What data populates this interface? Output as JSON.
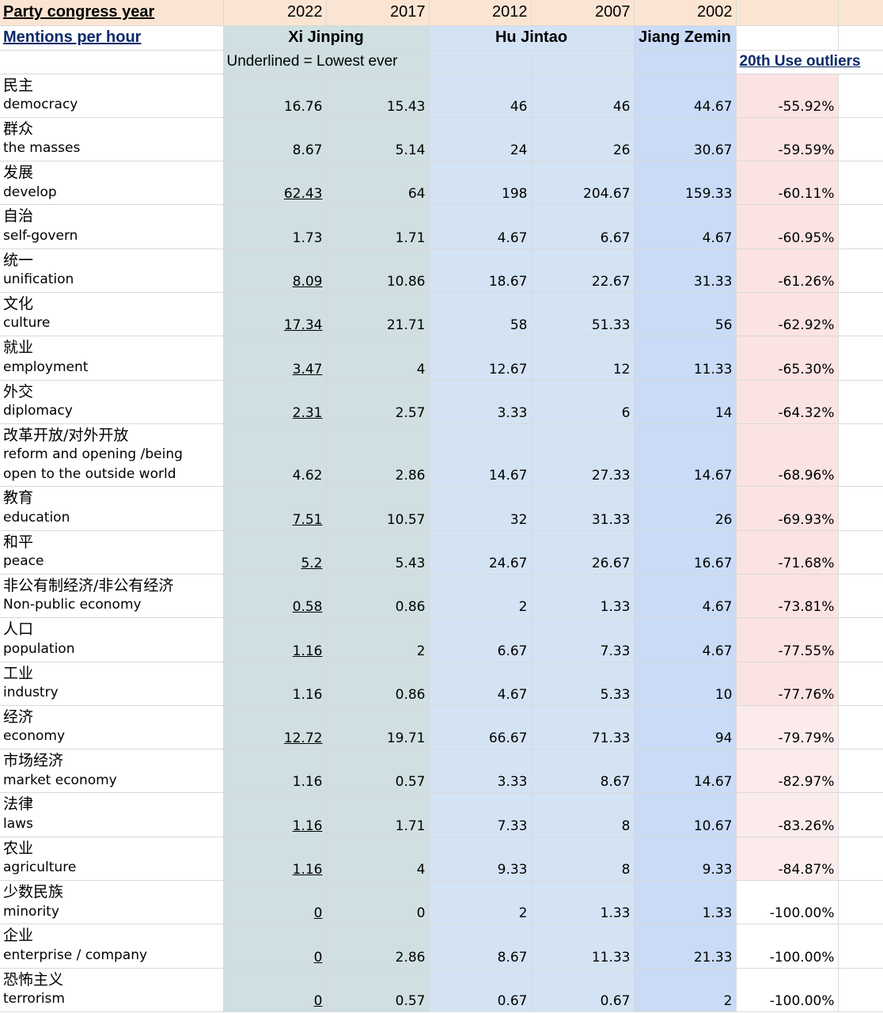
{
  "header": {
    "year_label": "Party congress year",
    "years": [
      "2022",
      "2017",
      "2012",
      "2007",
      "2002"
    ],
    "mentions_label": "Mentions per hour",
    "leaders": {
      "xi": "Xi Jinping",
      "hu": "Hu Jintao",
      "jiang": "Jiang Zemin"
    },
    "note": "Underlined = Lowest ever",
    "outliers_label": "20th Use outliers"
  },
  "colors": {
    "header_bg": "#fbe5d2",
    "xi_bg": "#cfdfe2",
    "hu_bg": "#d3e3f3",
    "jiang_bg": "#c9dbf6",
    "outlier_bg": "#fbe3e3"
  },
  "rows": [
    {
      "zh": "民主",
      "en": "democracy",
      "v": [
        "16.76",
        "15.43",
        "46",
        "46",
        "44.67"
      ],
      "pct": "-55.92%",
      "lowest": false
    },
    {
      "zh": "群众",
      "en": "the masses",
      "v": [
        "8.67",
        "5.14",
        "24",
        "26",
        "30.67"
      ],
      "pct": "-59.59%",
      "lowest": false
    },
    {
      "zh": "发展",
      "en": "develop",
      "v": [
        "62.43",
        "64",
        "198",
        "204.67",
        "159.33"
      ],
      "pct": "-60.11%",
      "lowest": true
    },
    {
      "zh": "自治",
      "en": "self-govern",
      "v": [
        "1.73",
        "1.71",
        "4.67",
        "6.67",
        "4.67"
      ],
      "pct": "-60.95%",
      "lowest": false
    },
    {
      "zh": "统一",
      "en": "unification",
      "v": [
        "8.09",
        "10.86",
        "18.67",
        "22.67",
        "31.33"
      ],
      "pct": "-61.26%",
      "lowest": true
    },
    {
      "zh": "文化",
      "en": "culture",
      "v": [
        "17.34",
        "21.71",
        "58",
        "51.33",
        "56"
      ],
      "pct": "-62.92%",
      "lowest": true
    },
    {
      "zh": "就业",
      "en": "employment",
      "v": [
        "3.47",
        "4",
        "12.67",
        "12",
        "11.33"
      ],
      "pct": "-65.30%",
      "lowest": true
    },
    {
      "zh": "外交",
      "en": "diplomacy",
      "v": [
        "2.31",
        "2.57",
        "3.33",
        "6",
        "14"
      ],
      "pct": "-64.32%",
      "lowest": true
    },
    {
      "zh": "改革开放/对外开放",
      "en": "reform and opening /being open to the outside world",
      "v": [
        "4.62",
        "2.86",
        "14.67",
        "27.33",
        "14.67"
      ],
      "pct": "-68.96%",
      "lowest": false
    },
    {
      "zh": "教育",
      "en": "education",
      "v": [
        "7.51",
        "10.57",
        "32",
        "31.33",
        "26"
      ],
      "pct": "-69.93%",
      "lowest": true
    },
    {
      "zh": "和平",
      "en": "peace",
      "v": [
        "5.2",
        "5.43",
        "24.67",
        "26.67",
        "16.67"
      ],
      "pct": "-71.68%",
      "lowest": true
    },
    {
      "zh": "非公有制经济/非公有经济",
      "en": "Non-public economy",
      "v": [
        "0.58",
        "0.86",
        "2",
        "1.33",
        "4.67"
      ],
      "pct": "-73.81%",
      "lowest": true
    },
    {
      "zh": "人口",
      "en": "population",
      "v": [
        "1.16",
        "2",
        "6.67",
        "7.33",
        "4.67"
      ],
      "pct": "-77.55%",
      "lowest": true
    },
    {
      "zh": "工业",
      "en": "industry",
      "v": [
        "1.16",
        "0.86",
        "4.67",
        "5.33",
        "10"
      ],
      "pct": "-77.76%",
      "lowest": false
    },
    {
      "zh": "经济",
      "en": "economy",
      "v": [
        "12.72",
        "19.71",
        "66.67",
        "71.33",
        "94"
      ],
      "pct": "-79.79%",
      "lowest": true
    },
    {
      "zh": "市场经济",
      "en": "market economy",
      "v": [
        "1.16",
        "0.57",
        "3.33",
        "8.67",
        "14.67"
      ],
      "pct": "-82.97%",
      "lowest": false
    },
    {
      "zh": "法律",
      "en": "laws",
      "v": [
        "1.16",
        "1.71",
        "7.33",
        "8",
        "10.67"
      ],
      "pct": "-83.26%",
      "lowest": true
    },
    {
      "zh": "农业",
      "en": "agriculture",
      "v": [
        "1.16",
        "4",
        "9.33",
        "8",
        "9.33"
      ],
      "pct": "-84.87%",
      "lowest": true
    },
    {
      "zh": "少数民族",
      "en": "minority",
      "v": [
        "0",
        "0",
        "2",
        "1.33",
        "1.33"
      ],
      "pct": "-100.00%",
      "lowest": true
    },
    {
      "zh": "企业",
      "en": "enterprise / company",
      "v": [
        "0",
        "2.86",
        "8.67",
        "11.33",
        "21.33"
      ],
      "pct": "-100.00%",
      "lowest": true
    },
    {
      "zh": "恐怖主义",
      "en": "terrorism",
      "v": [
        "0",
        "0.57",
        "0.67",
        "0.67",
        "2"
      ],
      "pct": "-100.00%",
      "lowest": true
    }
  ]
}
